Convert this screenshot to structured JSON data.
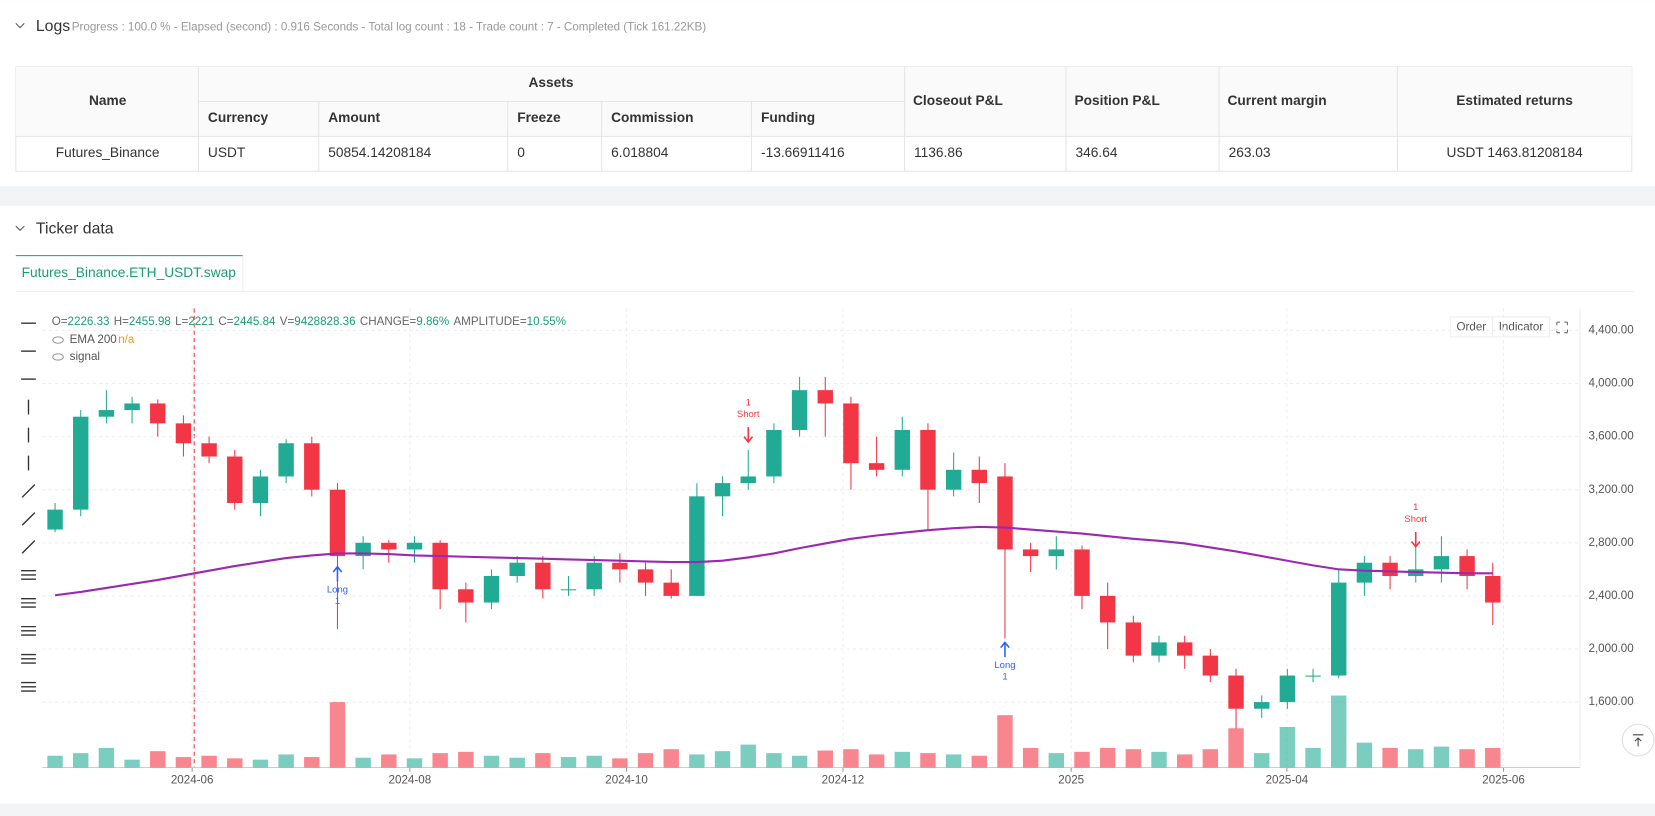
{
  "logs": {
    "title": "Logs",
    "status": "Progress : 100.0 % - Elapsed (second) : 0.916  Seconds - Total log count : 18 - Trade count : 7 - Completed (Tick 161.22KB)"
  },
  "table": {
    "name_header": "Name",
    "group_header": "Assets",
    "sub_headers": [
      "Currency",
      "Amount",
      "Freeze",
      "Commission",
      "Funding"
    ],
    "other_headers": [
      "Closeout P&L",
      "Position P&L",
      "Current margin",
      "Estimated returns"
    ],
    "rows": [
      [
        "Futures_Binance",
        "USDT",
        "50854.14208184",
        "0",
        "6.018804",
        "-13.66911416",
        "1136.86",
        "346.64",
        "263.03",
        "USDT 1463.81208184"
      ]
    ]
  },
  "ticker": {
    "title": "Ticker data",
    "tab": "Futures_Binance.ETH_USDT.swap",
    "buttons": [
      "Order",
      "Indicator"
    ],
    "info": [
      {
        "label": "O=",
        "value": "2226.33"
      },
      {
        "label": "H=",
        "value": "2455.98"
      },
      {
        "label": "L=",
        "value": "2221"
      },
      {
        "label": "C=",
        "value": "2445.84"
      },
      {
        "label": "V=",
        "value": "9428828.36"
      },
      {
        "label": "CHANGE=",
        "value": "9.86%"
      },
      {
        "label": "AMPLITUDE=",
        "value": "10.55%"
      }
    ],
    "legend": [
      {
        "name": "EMA 200",
        "value": "n/a"
      },
      {
        "name": "signal"
      }
    ]
  },
  "chart_data": {
    "type": "candlestick",
    "up_color": "#22ab94",
    "down_color": "#f23645",
    "xlim": [
      -0.5,
      59.4
    ],
    "ylim": [
      1107,
      4566
    ],
    "vlim": [
      0,
      120
    ],
    "xticks": [
      {
        "value": 5.34,
        "label": "2024-06"
      },
      {
        "value": 13.82,
        "label": "2024-08"
      },
      {
        "value": 22.26,
        "label": "2024-10"
      },
      {
        "value": 30.69,
        "label": "2024-12"
      },
      {
        "value": 39.58,
        "label": "2025"
      },
      {
        "value": 47.98,
        "label": "2025-04"
      },
      {
        "value": 56.42,
        "label": "2025-06"
      }
    ],
    "yticks": [
      {
        "value": 1600,
        "label": "1,600.00"
      },
      {
        "value": 2000,
        "label": "2,000.00"
      },
      {
        "value": 2400,
        "label": "2,400.00"
      },
      {
        "value": 2800,
        "label": "2,800.00"
      },
      {
        "value": 3200,
        "label": "3,200.00"
      },
      {
        "value": 3600,
        "label": "3,600.00"
      },
      {
        "value": 4000,
        "label": "4,000.00"
      },
      {
        "value": 4400,
        "label": "4,400.00"
      }
    ],
    "grid": true,
    "open": [
      2900,
      3050,
      3750,
      3800,
      3850,
      3700,
      3550,
      3450,
      3100,
      3300,
      3550,
      3200,
      2700,
      2800,
      2750,
      2800,
      2450,
      2350,
      2550,
      2650,
      2450,
      2450,
      2650,
      2600,
      2500,
      2400,
      3150,
      3250,
      3300,
      3650,
      3950,
      3850,
      3400,
      3350,
      3650,
      3200,
      3350,
      3300,
      2750,
      2700,
      2750,
      2400,
      2200,
      1950,
      2050,
      1950,
      1800,
      1550,
      1600,
      1800,
      1800,
      2500,
      2650,
      2550,
      2600,
      2700,
      2550
    ],
    "high": [
      3100,
      3800,
      3950,
      3900,
      3880,
      3760,
      3600,
      3500,
      3350,
      3580,
      3600,
      3250,
      2850,
      2820,
      2850,
      2820,
      2500,
      2600,
      2700,
      2700,
      2550,
      2700,
      2720,
      2650,
      2600,
      3250,
      3300,
      3500,
      3700,
      4050,
      4050,
      3900,
      3600,
      3750,
      3700,
      3480,
      3450,
      3400,
      2800,
      2850,
      2780,
      2500,
      2250,
      2100,
      2100,
      2000,
      1850,
      1650,
      1850,
      1850,
      2600,
      2700,
      2700,
      2780,
      2850,
      2750,
      2650
    ],
    "low": [
      2880,
      3000,
      3700,
      3700,
      3600,
      3450,
      3400,
      3050,
      3000,
      3250,
      3150,
      2150,
      2600,
      2650,
      2650,
      2300,
      2200,
      2300,
      2500,
      2380,
      2400,
      2400,
      2500,
      2400,
      2380,
      2400,
      3000,
      3200,
      3250,
      3600,
      3600,
      3200,
      3300,
      3300,
      2900,
      3150,
      3100,
      2080,
      2580,
      2600,
      2300,
      2000,
      1900,
      1900,
      1850,
      1750,
      1400,
      1480,
      1550,
      1750,
      1780,
      2400,
      2450,
      2500,
      2500,
      2450,
      2180
    ],
    "close": [
      3050,
      3750,
      3800,
      3850,
      3700,
      3550,
      3450,
      3100,
      3300,
      3550,
      3200,
      2700,
      2800,
      2750,
      2800,
      2450,
      2350,
      2550,
      2650,
      2450,
      2450,
      2650,
      2600,
      2500,
      2400,
      3150,
      3250,
      3300,
      3650,
      3950,
      3850,
      3400,
      3350,
      3650,
      3200,
      3350,
      3250,
      2750,
      2700,
      2750,
      2400,
      2200,
      1950,
      2050,
      1950,
      1800,
      1550,
      1600,
      1800,
      1800,
      2500,
      2650,
      2550,
      2600,
      2700,
      2550,
      2350
    ],
    "volume": [
      18,
      22,
      30,
      12,
      25,
      16,
      18,
      14,
      12,
      20,
      16,
      100,
      15,
      20,
      14,
      22,
      24,
      18,
      15,
      22,
      16,
      18,
      14,
      22,
      28,
      20,
      25,
      35,
      22,
      18,
      26,
      28,
      20,
      24,
      22,
      20,
      18,
      80,
      30,
      22,
      24,
      30,
      28,
      24,
      20,
      28,
      60,
      22,
      62,
      30,
      110,
      38,
      30,
      28,
      32,
      28,
      30
    ],
    "series": [
      {
        "name": "EMA 200",
        "color": "#9c27b0",
        "values": [
          2405,
          2430,
          2460,
          2490,
          2520,
          2555,
          2590,
          2625,
          2655,
          2685,
          2705,
          2720,
          2720,
          2715,
          2705,
          2700,
          2695,
          2690,
          2685,
          2680,
          2675,
          2670,
          2665,
          2660,
          2655,
          2655,
          2665,
          2690,
          2720,
          2760,
          2795,
          2830,
          2855,
          2875,
          2895,
          2910,
          2920,
          2915,
          2900,
          2885,
          2870,
          2850,
          2830,
          2815,
          2795,
          2765,
          2735,
          2700,
          2665,
          2630,
          2600,
          2590,
          2585,
          2580,
          2575,
          2570,
          2570
        ]
      }
    ],
    "signals": [
      {
        "index": 11,
        "price": 2620,
        "label": "Long",
        "count": "1"
      },
      {
        "index": 27,
        "price": 3560,
        "label": "Short",
        "count": "1"
      },
      {
        "index": 37,
        "price": 2050,
        "label": "Long",
        "count": "1"
      },
      {
        "index": 53,
        "price": 2770,
        "label": "Short",
        "count": "1"
      }
    ]
  }
}
